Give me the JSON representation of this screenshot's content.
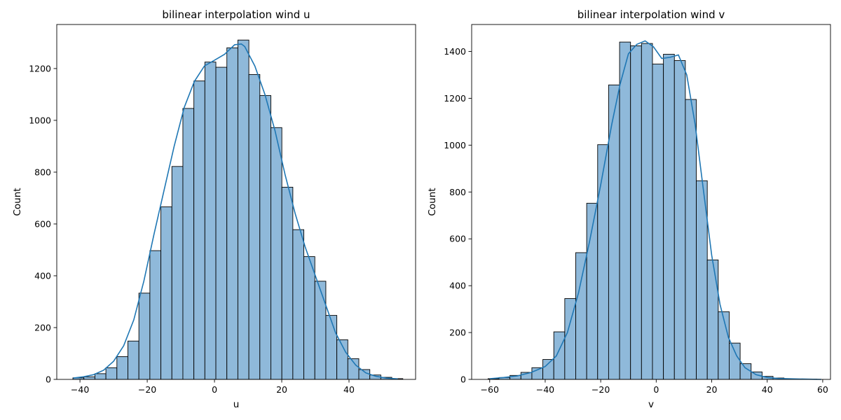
{
  "chart_data": [
    {
      "type": "bar",
      "title": "bilinear interpolation wind u",
      "xlabel": "u",
      "ylabel": "Count",
      "xlim": [
        -46.9,
        59.8
      ],
      "ylim": [
        0,
        1370
      ],
      "xticks": [
        -40,
        -20,
        0,
        20,
        40
      ],
      "yticks": [
        0,
        200,
        400,
        600,
        800,
        1000,
        1200
      ],
      "bin_start": -42.1,
      "bin_width": 3.27,
      "values": [
        6,
        10,
        22,
        45,
        88,
        148,
        333,
        497,
        666,
        822,
        1046,
        1152,
        1225,
        1205,
        1280,
        1310,
        1177,
        1096,
        972,
        742,
        578,
        474,
        379,
        247,
        153,
        80,
        38,
        17,
        8,
        3
      ],
      "kde": {
        "x": [
          -42,
          -39,
          -36,
          -33,
          -30,
          -27,
          -24,
          -21,
          -18,
          -15,
          -12,
          -9,
          -6,
          -3,
          0,
          3,
          6,
          8,
          9,
          12,
          15,
          18,
          21,
          24,
          27,
          30,
          33,
          36,
          39,
          42,
          45,
          48,
          51,
          54.5
        ],
        "y": [
          5,
          10,
          18,
          35,
          70,
          130,
          230,
          380,
          560,
          730,
          900,
          1050,
          1150,
          1210,
          1232,
          1255,
          1292,
          1295,
          1285,
          1210,
          1100,
          960,
          790,
          640,
          510,
          400,
          290,
          180,
          105,
          55,
          25,
          12,
          5,
          2
        ]
      },
      "grid": false
    },
    {
      "type": "bar",
      "title": "bilinear interpolation wind v",
      "xlabel": "v",
      "ylabel": "Count",
      "xlim": [
        -66.5,
        62.8
      ],
      "ylim": [
        0,
        1515
      ],
      "xticks": [
        -60,
        -40,
        -20,
        0,
        20,
        40,
        60
      ],
      "yticks": [
        0,
        200,
        400,
        600,
        800,
        1000,
        1200,
        1400
      ],
      "bin_start": -60.6,
      "bin_width": 3.95,
      "values": [
        3,
        8,
        17,
        30,
        50,
        85,
        203,
        345,
        541,
        752,
        1002,
        1257,
        1440,
        1424,
        1434,
        1346,
        1388,
        1361,
        1195,
        848,
        510,
        289,
        155,
        67,
        32,
        13,
        6,
        3,
        1,
        1
      ],
      "kde": {
        "x": [
          -60,
          -55,
          -50,
          -45,
          -40,
          -36,
          -32,
          -28,
          -24,
          -20,
          -16,
          -13,
          -10,
          -7,
          -4,
          -1,
          2,
          5,
          8,
          11,
          14,
          17,
          20,
          23,
          26,
          29,
          32,
          36,
          40,
          44,
          50,
          55,
          59.5
        ],
        "y": [
          3,
          8,
          15,
          30,
          55,
          100,
          200,
          370,
          590,
          830,
          1090,
          1260,
          1390,
          1430,
          1445,
          1420,
          1370,
          1375,
          1385,
          1300,
          1090,
          810,
          530,
          320,
          180,
          100,
          50,
          20,
          8,
          4,
          2,
          1,
          0
        ]
      },
      "grid": false
    }
  ]
}
